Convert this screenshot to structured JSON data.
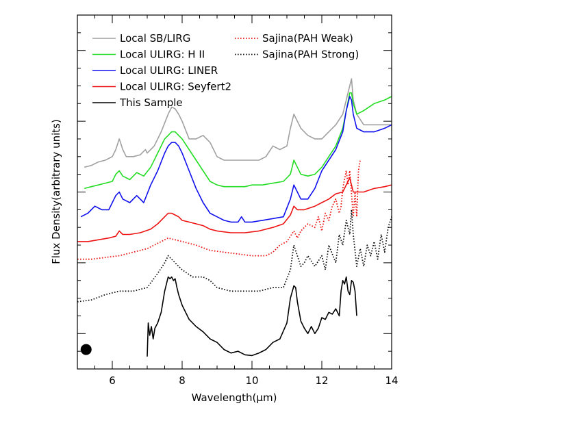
{
  "chart_data": {
    "type": "line",
    "title": "",
    "xlabel": "Wavelength(μm)",
    "ylabel": "Flux Density(arbitrary units)",
    "xlim": [
      5,
      14
    ],
    "ylim": [
      0,
      10
    ],
    "x_ticks": [
      6,
      8,
      10,
      12,
      14
    ],
    "y_tick_labels_shown": false,
    "grid": false,
    "legend_position": "top-left",
    "series": [
      {
        "name": "Local SB/LIRG",
        "color": "#a0a0a0",
        "style": "solid",
        "x": [
          5.2,
          5.4,
          5.6,
          5.8,
          6.0,
          6.1,
          6.2,
          6.3,
          6.4,
          6.6,
          6.8,
          6.95,
          7.0,
          7.1,
          7.2,
          7.4,
          7.6,
          7.7,
          7.8,
          7.9,
          8.0,
          8.2,
          8.4,
          8.6,
          8.8,
          9.0,
          9.2,
          9.5,
          9.8,
          10.0,
          10.2,
          10.4,
          10.6,
          10.8,
          11.0,
          11.1,
          11.2,
          11.3,
          11.4,
          11.6,
          11.8,
          12.0,
          12.2,
          12.4,
          12.6,
          12.7,
          12.8,
          12.85,
          12.9,
          13.0,
          13.2,
          13.5,
          13.8,
          14.0
        ],
        "y": [
          5.7,
          5.75,
          5.85,
          5.9,
          6.0,
          6.2,
          6.5,
          6.2,
          6.0,
          6.0,
          6.05,
          6.2,
          6.1,
          6.2,
          6.3,
          6.7,
          7.2,
          7.4,
          7.35,
          7.2,
          7.0,
          6.5,
          6.5,
          6.6,
          6.4,
          6.0,
          5.9,
          5.9,
          5.9,
          5.9,
          5.9,
          6.0,
          6.3,
          6.2,
          6.3,
          6.8,
          7.2,
          7.0,
          6.8,
          6.6,
          6.5,
          6.5,
          6.7,
          6.9,
          7.2,
          7.6,
          8.0,
          8.2,
          7.6,
          7.2,
          6.9,
          6.9,
          6.9,
          6.9
        ]
      },
      {
        "name": "Local ULIRG: H II",
        "color": "#22dd22",
        "style": "solid",
        "x": [
          5.2,
          5.4,
          5.6,
          5.8,
          6.0,
          6.1,
          6.2,
          6.3,
          6.5,
          6.7,
          6.9,
          7.1,
          7.3,
          7.5,
          7.6,
          7.7,
          7.8,
          7.9,
          8.0,
          8.2,
          8.4,
          8.6,
          8.8,
          9.0,
          9.2,
          9.5,
          9.8,
          10.0,
          10.3,
          10.6,
          10.9,
          11.1,
          11.2,
          11.3,
          11.4,
          11.6,
          11.8,
          12.0,
          12.2,
          12.4,
          12.6,
          12.7,
          12.8,
          12.85,
          12.9,
          13.0,
          13.2,
          13.5,
          13.8,
          14.0
        ],
        "y": [
          5.1,
          5.15,
          5.2,
          5.25,
          5.3,
          5.5,
          5.6,
          5.45,
          5.35,
          5.55,
          5.45,
          5.7,
          6.1,
          6.5,
          6.6,
          6.7,
          6.7,
          6.6,
          6.5,
          6.2,
          5.9,
          5.6,
          5.3,
          5.2,
          5.15,
          5.15,
          5.15,
          5.2,
          5.2,
          5.25,
          5.3,
          5.5,
          5.9,
          5.7,
          5.5,
          5.45,
          5.5,
          5.7,
          6.0,
          6.3,
          6.8,
          7.3,
          7.8,
          7.8,
          7.5,
          7.2,
          7.3,
          7.5,
          7.6,
          7.7
        ]
      },
      {
        "name": "Local ULIRG: LINER",
        "color": "#1010ee",
        "style": "solid",
        "x": [
          5.1,
          5.3,
          5.5,
          5.7,
          5.9,
          6.0,
          6.1,
          6.2,
          6.3,
          6.5,
          6.7,
          6.9,
          7.1,
          7.3,
          7.5,
          7.6,
          7.7,
          7.8,
          7.9,
          8.0,
          8.2,
          8.4,
          8.6,
          8.8,
          9.0,
          9.2,
          9.4,
          9.6,
          9.7,
          9.8,
          10.0,
          10.3,
          10.6,
          10.9,
          11.1,
          11.2,
          11.3,
          11.4,
          11.6,
          11.8,
          12.0,
          12.2,
          12.4,
          12.6,
          12.7,
          12.8,
          12.85,
          12.9,
          13.0,
          13.2,
          13.5,
          13.8,
          14.0
        ],
        "y": [
          4.3,
          4.4,
          4.6,
          4.5,
          4.5,
          4.7,
          4.9,
          5.0,
          4.8,
          4.7,
          4.9,
          4.7,
          5.2,
          5.6,
          6.1,
          6.3,
          6.4,
          6.4,
          6.3,
          6.1,
          5.6,
          5.1,
          4.7,
          4.4,
          4.3,
          4.2,
          4.15,
          4.15,
          4.3,
          4.15,
          4.15,
          4.2,
          4.25,
          4.3,
          4.8,
          5.2,
          5.0,
          4.8,
          4.8,
          5.1,
          5.6,
          5.9,
          6.2,
          6.7,
          7.3,
          7.7,
          7.6,
          7.2,
          6.8,
          6.7,
          6.7,
          6.8,
          6.9
        ]
      },
      {
        "name": "Local ULIRG: Seyfert2",
        "color": "#ee1111",
        "style": "solid",
        "x": [
          5.0,
          5.3,
          5.6,
          5.9,
          6.1,
          6.2,
          6.3,
          6.5,
          6.8,
          7.1,
          7.3,
          7.5,
          7.6,
          7.7,
          7.8,
          7.9,
          8.0,
          8.2,
          8.4,
          8.6,
          8.8,
          9.0,
          9.4,
          9.8,
          10.2,
          10.6,
          10.9,
          11.1,
          11.2,
          11.3,
          11.5,
          11.8,
          12.0,
          12.2,
          12.4,
          12.6,
          12.7,
          12.8,
          12.9,
          13.0,
          13.2,
          13.5,
          13.8,
          14.0
        ],
        "y": [
          3.6,
          3.6,
          3.65,
          3.7,
          3.75,
          3.9,
          3.8,
          3.8,
          3.85,
          3.95,
          4.1,
          4.3,
          4.4,
          4.4,
          4.35,
          4.3,
          4.2,
          4.15,
          4.1,
          4.05,
          3.95,
          3.9,
          3.85,
          3.85,
          3.9,
          4.0,
          4.1,
          4.35,
          4.6,
          4.5,
          4.5,
          4.6,
          4.7,
          4.8,
          4.95,
          5.0,
          5.2,
          5.4,
          5.0,
          5.0,
          5.0,
          5.1,
          5.15,
          5.2
        ]
      },
      {
        "name": "Sajina(PAH Weak)",
        "color": "#ee1111",
        "style": "dotted",
        "x": [
          5.0,
          5.4,
          5.8,
          6.2,
          6.6,
          7.0,
          7.4,
          7.6,
          7.8,
          8.0,
          8.4,
          8.8,
          9.2,
          9.6,
          10.0,
          10.4,
          10.6,
          10.8,
          11.0,
          11.2,
          11.3,
          11.4,
          11.6,
          11.8,
          11.9,
          12.0,
          12.1,
          12.2,
          12.3,
          12.4,
          12.5,
          12.55,
          12.6,
          12.7,
          12.75,
          12.8,
          12.9,
          12.95,
          13.0,
          13.05,
          13.1
        ],
        "y": [
          3.1,
          3.1,
          3.15,
          3.2,
          3.3,
          3.4,
          3.6,
          3.7,
          3.65,
          3.6,
          3.5,
          3.35,
          3.3,
          3.25,
          3.2,
          3.2,
          3.3,
          3.5,
          3.6,
          3.9,
          3.7,
          3.9,
          4.1,
          4.0,
          4.3,
          3.9,
          4.4,
          4.2,
          4.6,
          4.8,
          4.4,
          4.6,
          5.1,
          5.6,
          5.2,
          5.6,
          4.3,
          5.0,
          4.3,
          5.6,
          5.9
        ]
      },
      {
        "name": "Sajina(PAH Strong)",
        "color": "#111111",
        "style": "dotted",
        "x": [
          5.0,
          5.4,
          5.8,
          6.2,
          6.6,
          7.0,
          7.3,
          7.5,
          7.6,
          7.7,
          7.8,
          8.0,
          8.3,
          8.6,
          8.8,
          9.0,
          9.4,
          9.8,
          10.2,
          10.6,
          10.9,
          11.1,
          11.2,
          11.3,
          11.4,
          11.5,
          11.6,
          11.8,
          12.0,
          12.1,
          12.2,
          12.4,
          12.5,
          12.6,
          12.7,
          12.8,
          12.85,
          12.9,
          13.0,
          13.1,
          13.2,
          13.3,
          13.4,
          13.5,
          13.6,
          13.7,
          13.8,
          13.9,
          14.0
        ],
        "y": [
          1.9,
          1.95,
          2.1,
          2.2,
          2.2,
          2.3,
          2.7,
          3.0,
          3.2,
          3.1,
          3.0,
          2.8,
          2.6,
          2.6,
          2.5,
          2.3,
          2.2,
          2.2,
          2.2,
          2.3,
          2.3,
          2.8,
          3.5,
          3.2,
          2.9,
          3.0,
          3.2,
          2.9,
          3.2,
          2.8,
          3.5,
          3.0,
          3.8,
          3.5,
          4.2,
          3.8,
          4.5,
          3.8,
          2.9,
          3.4,
          2.9,
          3.5,
          3.2,
          3.6,
          3.1,
          3.8,
          3.3,
          4.0,
          4.3
        ]
      },
      {
        "name": "This Sample",
        "color": "#000000",
        "style": "solid",
        "x": [
          7.0,
          7.03,
          7.07,
          7.12,
          7.17,
          7.22,
          7.3,
          7.4,
          7.5,
          7.6,
          7.65,
          7.7,
          7.75,
          7.8,
          7.85,
          7.9,
          8.0,
          8.2,
          8.4,
          8.6,
          8.8,
          9.0,
          9.2,
          9.4,
          9.6,
          9.8,
          10.0,
          10.2,
          10.4,
          10.6,
          10.8,
          11.0,
          11.1,
          11.2,
          11.25,
          11.3,
          11.4,
          11.5,
          11.6,
          11.7,
          11.8,
          11.9,
          12.0,
          12.1,
          12.2,
          12.3,
          12.4,
          12.5,
          12.55,
          12.6,
          12.65,
          12.7,
          12.75,
          12.8,
          12.85,
          12.9,
          12.95,
          13.0
        ],
        "y": [
          0.35,
          1.3,
          0.95,
          1.2,
          0.85,
          1.15,
          1.3,
          1.6,
          2.2,
          2.6,
          2.55,
          2.6,
          2.5,
          2.55,
          2.3,
          2.1,
          1.8,
          1.4,
          1.2,
          1.05,
          0.85,
          0.75,
          0.55,
          0.45,
          0.5,
          0.4,
          0.38,
          0.45,
          0.55,
          0.75,
          0.85,
          1.3,
          2.0,
          2.35,
          2.3,
          1.9,
          1.35,
          1.15,
          1.0,
          1.2,
          1.0,
          1.15,
          1.45,
          1.4,
          1.6,
          1.55,
          1.7,
          1.5,
          2.2,
          2.5,
          2.4,
          2.6,
          2.2,
          2.1,
          2.5,
          2.45,
          2.2,
          1.5
        ]
      }
    ],
    "marker": {
      "shape": "filled-circle",
      "x": 5.25,
      "y": 0.55,
      "color": "#000000"
    }
  }
}
